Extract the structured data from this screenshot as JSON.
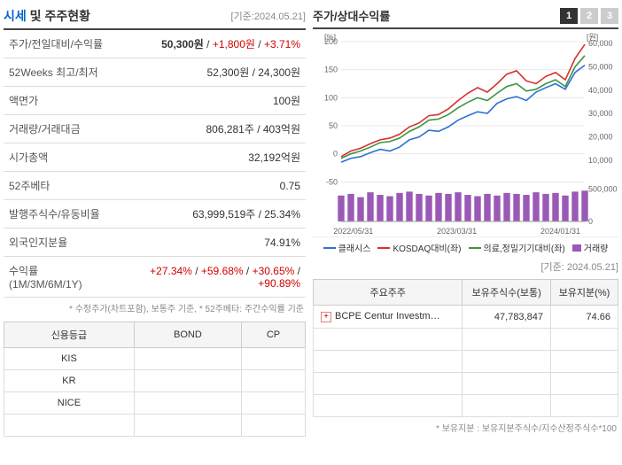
{
  "header": {
    "title_prefix": "시세",
    "title_mid": " 및 ",
    "title_suffix": "주주현황",
    "base_date": "[기준:2024.05.21]"
  },
  "market_rows": [
    {
      "label": "주가/전일대비/수익률",
      "value": "50,300원",
      "extra1": "+1,800원",
      "extra2": "+3.71%"
    },
    {
      "label": "52Weeks 최고/최저",
      "value": "52,300원 / 24,300원"
    },
    {
      "label": "액면가",
      "value": "100원"
    },
    {
      "label": "거래량/거래대금",
      "value": "806,281주 / 403억원"
    },
    {
      "label": "시가총액",
      "value": "32,192억원"
    },
    {
      "label": "52주베타",
      "value": "0.75"
    },
    {
      "label": "발행주식수/유동비율",
      "value": "63,999,519주 / 25.34%"
    },
    {
      "label": "외국인지분율",
      "value": "74.91%"
    },
    {
      "label": "수익률 (1M/3M/6M/1Y)",
      "value": "",
      "extra1": "+27.34%",
      "sep1": " / ",
      "extra2": "+59.68%",
      "sep2": " / ",
      "extra3": "+30.65%",
      "sep3": " / ",
      "extra4": "+90.89%"
    }
  ],
  "footnote1": "* 수정주가(차트포함), 보통주 기준, * 52주베타: 주간수익률 기준",
  "credit_table": {
    "headers": [
      "신용등급",
      "BOND",
      "CP"
    ],
    "rows": [
      [
        "KIS",
        "",
        ""
      ],
      [
        "KR",
        "",
        ""
      ],
      [
        "NICE",
        "",
        ""
      ],
      [
        "",
        "",
        ""
      ]
    ]
  },
  "chart": {
    "title": "주가/상대수익률",
    "tabs": [
      "1",
      "2",
      "3"
    ],
    "active_tab": 0,
    "y_left_label": "[%]",
    "y_right_label": "[원]",
    "y_left_ticks": [
      200,
      150,
      100,
      50,
      0,
      -50
    ],
    "y_right_ticks": [
      60000,
      50000,
      40000,
      30000,
      20000,
      10000
    ],
    "y_vol_ticks": [
      500000,
      0
    ],
    "x_ticks": [
      "2022/05/31",
      "2023/03/31",
      "2024/01/31"
    ],
    "legend": [
      {
        "label": "클래시스",
        "color": "#2e6fd6",
        "type": "line"
      },
      {
        "label": "KOSDAQ대비(좌)",
        "color": "#d63030",
        "type": "line"
      },
      {
        "label": "의료,정밀기기대비(좌)",
        "color": "#3a9640",
        "type": "line"
      },
      {
        "label": "거래량",
        "color": "#9b59b6",
        "type": "box"
      }
    ],
    "series": {
      "classis": [
        -15,
        -8,
        -5,
        2,
        8,
        5,
        12,
        25,
        30,
        42,
        40,
        48,
        60,
        68,
        75,
        72,
        90,
        98,
        102,
        95,
        110,
        118,
        125,
        115,
        145,
        158
      ],
      "kosdaq": [
        -5,
        5,
        10,
        18,
        25,
        28,
        35,
        48,
        55,
        68,
        70,
        80,
        95,
        108,
        118,
        110,
        125,
        142,
        148,
        130,
        125,
        138,
        145,
        132,
        170,
        195
      ],
      "medical": [
        -8,
        0,
        5,
        12,
        20,
        22,
        28,
        40,
        48,
        60,
        62,
        70,
        82,
        92,
        100,
        95,
        108,
        120,
        125,
        112,
        115,
        125,
        132,
        120,
        155,
        175
      ],
      "volume": [
        80,
        85,
        75,
        90,
        82,
        78,
        88,
        92,
        85,
        80,
        88,
        85,
        90,
        82,
        78,
        85,
        80,
        88,
        85,
        82,
        90,
        85,
        88,
        80,
        92,
        95
      ]
    },
    "colors": {
      "classis": "#2e6fd6",
      "kosdaq": "#d63030",
      "medical": "#3a9640",
      "volume": "#9b59b6",
      "grid": "#e8e8e8",
      "axis": "#999"
    }
  },
  "right_date": "[기준: 2024.05.21]",
  "shareholder_table": {
    "headers": [
      "주요주주",
      "보유주식수(보통)",
      "보유지분(%)"
    ],
    "rows": [
      {
        "name": "BCPE Centur Investm…",
        "shares": "47,783,847",
        "pct": "74.66"
      }
    ],
    "empty_rows": 4
  },
  "footnote2": "* 보유지분 : 보유지분주식수/지수산정주식수*100"
}
